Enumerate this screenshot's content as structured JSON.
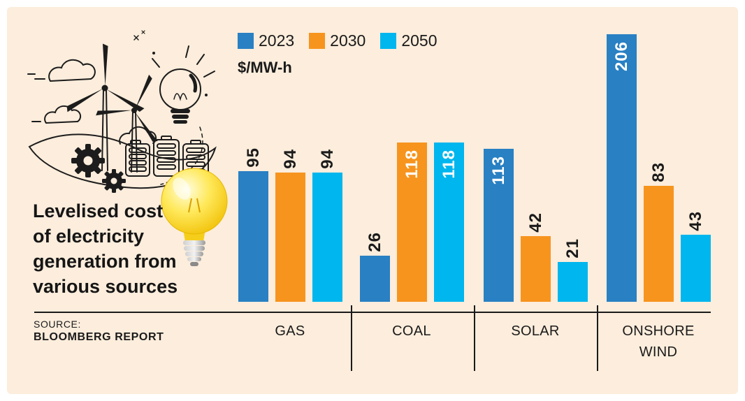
{
  "colors": {
    "background": "#FCEDDC",
    "frame": "#FFFFFF",
    "text": "#1A1A1A",
    "blue_2023": "#2980C3",
    "orange_2030": "#F7941E",
    "cyan_2050": "#00B6EE"
  },
  "title": {
    "lines": [
      "Levelised cost",
      "of electricity",
      "generation from",
      "various sources"
    ]
  },
  "unit_label": "$/MW-h",
  "source": {
    "label": "SOURCE:",
    "name": "BLOOMBERG REPORT"
  },
  "legend": {
    "items": [
      {
        "label": "2023",
        "color": "#2980C3"
      },
      {
        "label": "2030",
        "color": "#F7941E"
      },
      {
        "label": "2050",
        "color": "#00B6EE"
      }
    ]
  },
  "icons": {
    "illustration": "renewable-energy-line-art",
    "bulb": "glossy-yellow-lightbulb"
  },
  "chart_data": {
    "type": "bar",
    "title": "Levelised cost of electricity generation from various sources",
    "ylabel": "$/MW-h",
    "xlabel": "",
    "categories": [
      "GAS",
      "COAL",
      "SOLAR",
      "ONSHORE WIND"
    ],
    "series": [
      {
        "name": "2023",
        "color": "#2980C3",
        "values": [
          95,
          26,
          113,
          206
        ]
      },
      {
        "name": "2030",
        "color": "#F7941E",
        "values": [
          94,
          118,
          42,
          83
        ]
      },
      {
        "name": "2050",
        "color": "#00B6EE",
        "values": [
          94,
          118,
          21,
          43
        ]
      }
    ],
    "value_labels": true,
    "label_inside_threshold": 100,
    "grid": false,
    "legend_position": "top",
    "source": "SOURCE: BLOOMBERG REPORT"
  }
}
